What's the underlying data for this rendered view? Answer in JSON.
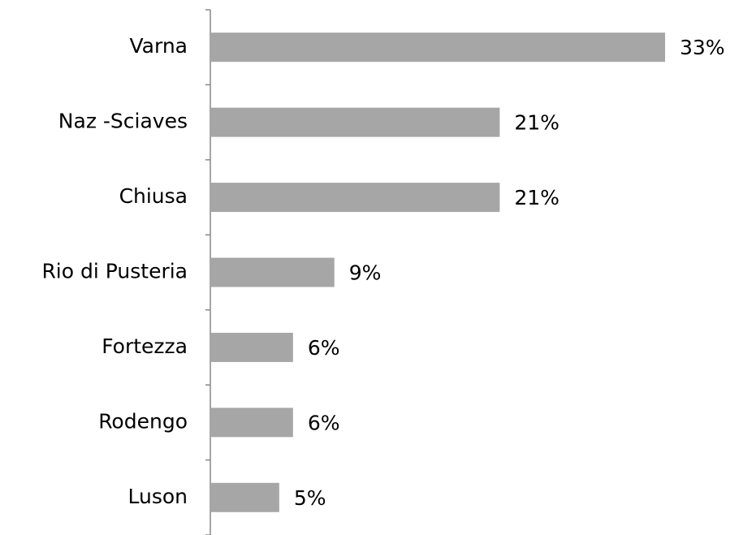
{
  "chart_data": {
    "type": "bar",
    "orientation": "horizontal",
    "categories": [
      "Varna",
      "Naz -Sciaves",
      "Chiusa",
      "Rio di Pusteria",
      "Fortezza",
      "Rodengo",
      "Luson"
    ],
    "values": [
      33,
      21,
      21,
      9,
      6,
      6,
      5
    ],
    "value_labels": [
      "33%",
      "21%",
      "21%",
      "9%",
      "6%",
      "6%",
      "5%"
    ],
    "color": "#a6a6a6"
  }
}
